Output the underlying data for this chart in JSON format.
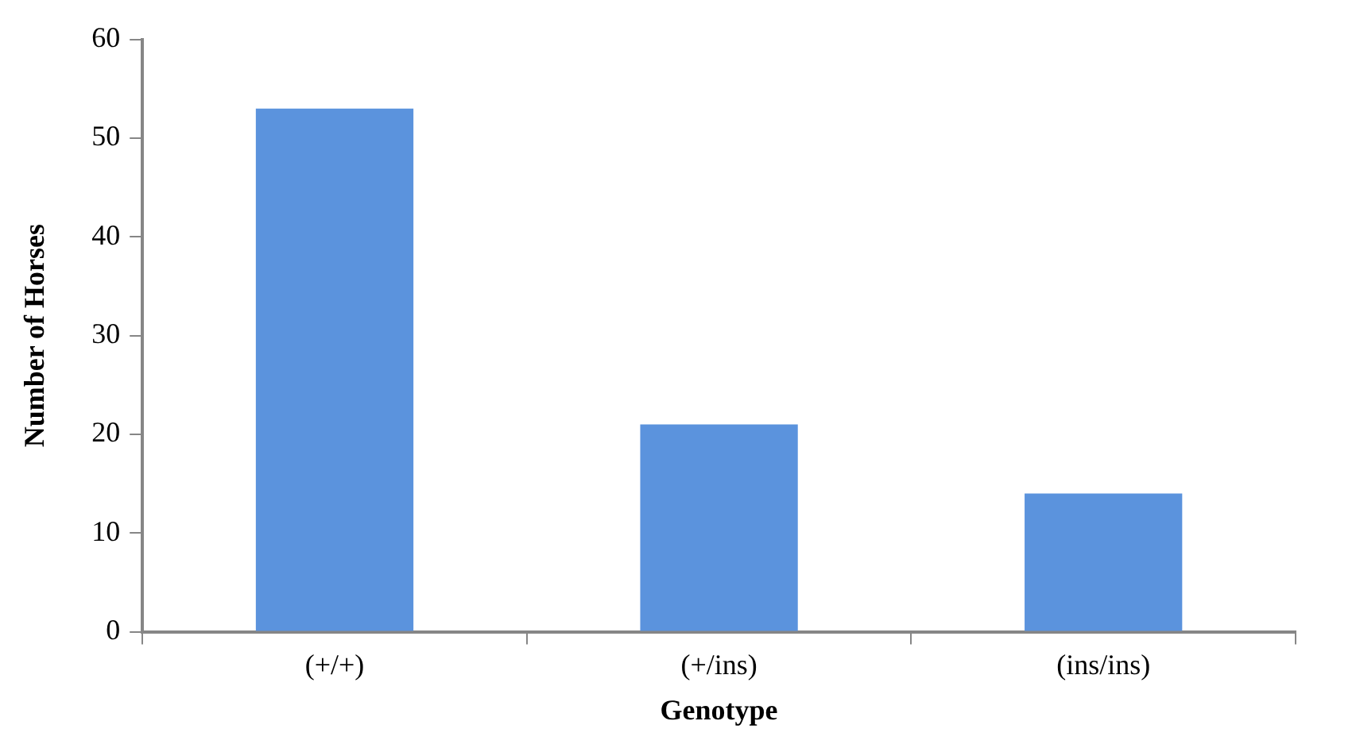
{
  "chart_data": {
    "type": "bar",
    "xlabel": "Genotype",
    "ylabel": "Number of Horses",
    "categories": [
      "(+/+)",
      "(+/ins)",
      "(ins/ins)"
    ],
    "values": [
      53,
      21,
      14
    ],
    "color": "#5b93dd",
    "ylim": [
      0,
      60
    ],
    "yticks": [
      0,
      10,
      20,
      30,
      40,
      50,
      60
    ],
    "grid": false,
    "legend": false
  }
}
